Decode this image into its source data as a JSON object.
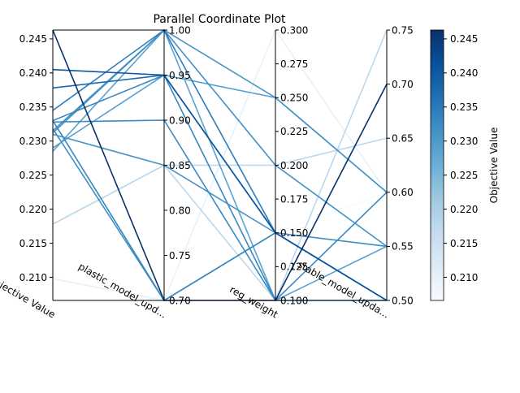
{
  "chart_data": {
    "type": "parallel_coordinates",
    "title": "Parallel Coordinate Plot",
    "axes": [
      {
        "label": "Objective Value",
        "range": [
          0.2066,
          0.2463
        ],
        "ticks": [
          0.21,
          0.215,
          0.22,
          0.225,
          0.23,
          0.235,
          0.24,
          0.245
        ],
        "tick_labels": [
          "0.210",
          "0.215",
          "0.220",
          "0.225",
          "0.230",
          "0.235",
          "0.240",
          "0.245"
        ]
      },
      {
        "label": "plastic_model_upd...",
        "range": [
          0.7,
          1.0
        ],
        "ticks": [
          0.7,
          0.75,
          0.8,
          0.85,
          0.9,
          0.95,
          1.0
        ],
        "tick_labels": [
          "0.70",
          "0.75",
          "0.80",
          "0.85",
          "0.90",
          "0.95",
          "1.00"
        ]
      },
      {
        "label": "reg_weight",
        "range": [
          0.1,
          0.3
        ],
        "ticks": [
          0.1,
          0.125,
          0.15,
          0.175,
          0.2,
          0.225,
          0.25,
          0.275,
          0.3
        ],
        "tick_labels": [
          "0.100",
          "0.125",
          "0.150",
          "0.175",
          "0.200",
          "0.225",
          "0.250",
          "0.275",
          "0.300"
        ]
      },
      {
        "label": "stable_model_upda...",
        "range": [
          0.5,
          0.75
        ],
        "ticks": [
          0.5,
          0.55,
          0.6,
          0.65,
          0.7,
          0.75
        ],
        "tick_labels": [
          "0.50",
          "0.55",
          "0.60",
          "0.65",
          "0.70",
          "0.75"
        ]
      }
    ],
    "series": [
      {
        "values": [
          0.2066,
          0.7,
          0.15,
          0.6
        ]
      },
      {
        "values": [
          0.2098,
          0.7,
          0.3,
          0.6
        ]
      },
      {
        "values": [
          0.2178,
          0.85,
          0.2,
          0.65
        ]
      },
      {
        "values": [
          0.2178,
          0.85,
          0.1,
          0.75
        ]
      },
      {
        "values": [
          0.2285,
          1.0,
          0.1,
          0.55
        ]
      },
      {
        "values": [
          0.229,
          0.95,
          0.25,
          0.6
        ]
      },
      {
        "values": [
          0.231,
          0.85,
          0.15,
          0.5
        ]
      },
      {
        "values": [
          0.2312,
          1.0,
          0.25,
          0.6
        ]
      },
      {
        "values": [
          0.2315,
          1.0,
          0.2,
          0.55
        ]
      },
      {
        "values": [
          0.2318,
          0.7,
          0.15,
          0.55
        ]
      },
      {
        "values": [
          0.2328,
          0.9,
          0.1,
          0.6
        ]
      },
      {
        "values": [
          0.233,
          0.7,
          0.15,
          0.5
        ]
      },
      {
        "values": [
          0.233,
          0.95,
          0.1,
          0.5
        ]
      },
      {
        "values": [
          0.2345,
          1.0,
          0.15,
          0.5
        ]
      },
      {
        "values": [
          0.2378,
          0.95,
          0.15,
          0.5
        ]
      },
      {
        "values": [
          0.2405,
          0.95,
          0.15,
          0.5
        ]
      },
      {
        "values": [
          0.2463,
          0.7,
          0.1,
          0.7
        ]
      }
    ],
    "colorbar": {
      "label": "Objective Value",
      "range": [
        0.2066,
        0.2463
      ],
      "ticks": [
        0.21,
        0.215,
        0.22,
        0.225,
        0.23,
        0.235,
        0.24,
        0.245
      ],
      "tick_labels": [
        "0.210",
        "0.215",
        "0.220",
        "0.225",
        "0.230",
        "0.235",
        "0.240",
        "0.245"
      ],
      "colormap": "Blues"
    },
    "grid": false
  }
}
